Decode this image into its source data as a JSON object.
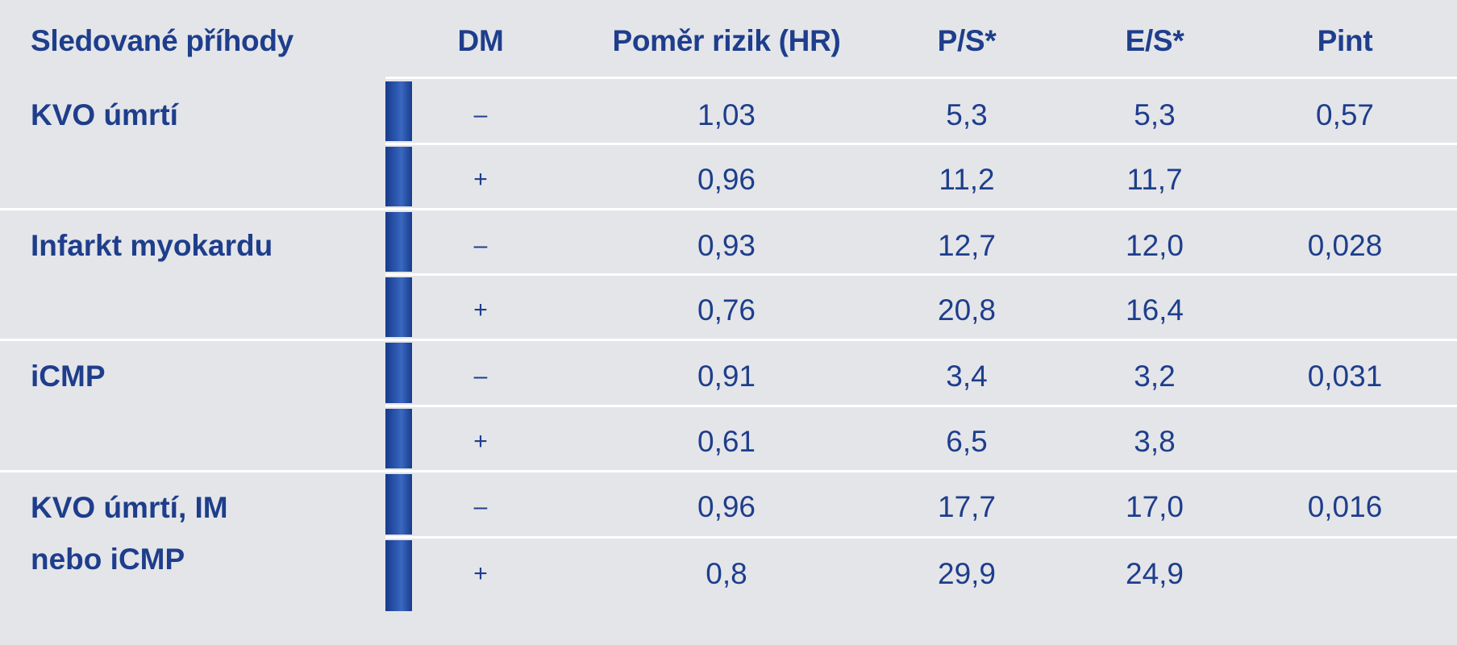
{
  "table": {
    "headers": {
      "event": "Sledované příhody",
      "dm": "DM",
      "hr": "Poměr rizik (HR)",
      "ps": "P/S*",
      "es": "E/S*",
      "pint": "Pint"
    },
    "groups": [
      {
        "label_lines": [
          "KVO úmrtí"
        ],
        "pint": "0,57",
        "rows": [
          {
            "dm": "–",
            "hr": "1,03",
            "ps": "5,3",
            "es": "5,3"
          },
          {
            "dm": "+",
            "hr": "0,96",
            "ps": "11,2",
            "es": "11,7"
          }
        ]
      },
      {
        "label_lines": [
          "Infarkt myokardu"
        ],
        "pint": "0,028",
        "rows": [
          {
            "dm": "–",
            "hr": "0,93",
            "ps": "12,7",
            "es": "12,0"
          },
          {
            "dm": "+",
            "hr": "0,76",
            "ps": "20,8",
            "es": "16,4"
          }
        ]
      },
      {
        "label_lines": [
          "iCMP"
        ],
        "pint": "0,031",
        "rows": [
          {
            "dm": "–",
            "hr": "0,91",
            "ps": "3,4",
            "es": "3,2"
          },
          {
            "dm": "+",
            "hr": "0,61",
            "ps": "6,5",
            "es": "3,8"
          }
        ]
      },
      {
        "label_lines": [
          "KVO úmrtí, IM",
          "nebo iCMP"
        ],
        "pint": "0,016",
        "rows": [
          {
            "dm": "–",
            "hr": "0,96",
            "ps": "17,7",
            "es": "17,0"
          },
          {
            "dm": "+",
            "hr": "0,8",
            "ps": "29,9",
            "es": "24,9"
          }
        ]
      }
    ]
  },
  "colors": {
    "background": "#e4e5e9",
    "text": "#1e3e8c",
    "bar": "#2a56ad",
    "rule": "#ffffff"
  }
}
